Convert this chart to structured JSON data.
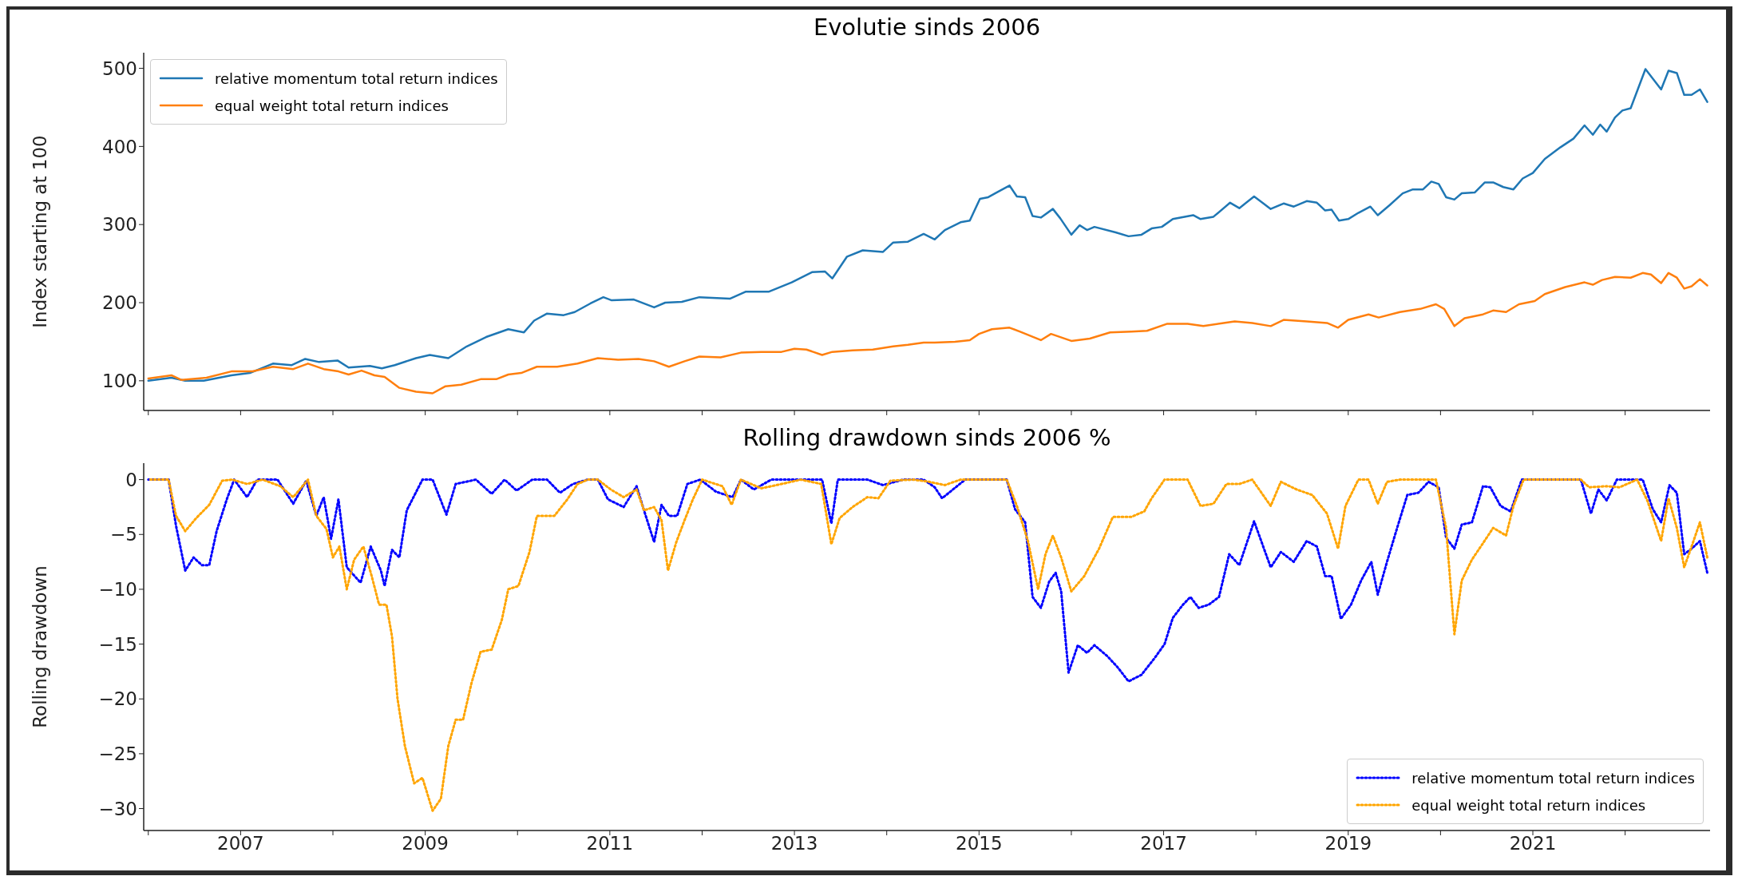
{
  "chart_data": [
    {
      "type": "line",
      "title": "Evolutie sinds 2006",
      "ylabel": "Index starting at 100",
      "line_style": "solid",
      "legend": "top left",
      "tick_labels": "y",
      "xlim": [
        2005.95,
        2022.92
      ],
      "xticks": [
        {
          "value": 2006,
          "label": null
        },
        2007,
        {
          "value": 2008,
          "label": null
        },
        2009,
        {
          "value": 2010,
          "label": null
        },
        2011,
        {
          "value": 2012,
          "label": null
        },
        2013,
        {
          "value": 2014,
          "label": null
        },
        2015,
        {
          "value": 2016,
          "label": null
        },
        2017,
        {
          "value": 2018,
          "label": null
        },
        2019,
        {
          "value": 2020,
          "label": null
        },
        2021,
        {
          "value": 2022,
          "label": null
        }
      ],
      "ylim": [
        62,
        520
      ],
      "yticks": [
        100,
        200,
        300,
        400,
        500
      ],
      "series": [
        {
          "name": "relative momentum total return indices",
          "color": "#1f77b4",
          "x": [
            2006.0,
            2006.25,
            2006.4,
            2006.6,
            2006.9,
            2007.1,
            2007.35,
            2007.55,
            2007.7,
            2007.85,
            2008.05,
            2008.17,
            2008.4,
            2008.53,
            2008.67,
            2008.9,
            2009.05,
            2009.25,
            2009.45,
            2009.66,
            2009.9,
            2010.07,
            2010.18,
            2010.32,
            2010.5,
            2010.62,
            2010.79,
            2010.93,
            2011.02,
            2011.26,
            2011.48,
            2011.6,
            2011.78,
            2011.97,
            2012.3,
            2012.47,
            2012.72,
            2012.97,
            2013.19,
            2013.33,
            2013.41,
            2013.57,
            2013.74,
            2013.96,
            2014.07,
            2014.23,
            2014.4,
            2014.52,
            2014.63,
            2014.8,
            2014.9,
            2015.01,
            2015.1,
            2015.19,
            2015.33,
            2015.41,
            2015.5,
            2015.58,
            2015.67,
            2015.8,
            2015.88,
            2016.0,
            2016.09,
            2016.17,
            2016.25,
            2016.48,
            2016.62,
            2016.76,
            2016.87,
            2016.98,
            2017.1,
            2017.32,
            2017.4,
            2017.54,
            2017.72,
            2017.82,
            2017.98,
            2018.16,
            2018.3,
            2018.41,
            2018.55,
            2018.66,
            2018.75,
            2018.82,
            2018.9,
            2019.0,
            2019.11,
            2019.24,
            2019.32,
            2019.45,
            2019.59,
            2019.7,
            2019.81,
            2019.9,
            2019.98,
            2020.06,
            2020.15,
            2020.23,
            2020.37,
            2020.48,
            2020.57,
            2020.68,
            2020.79,
            2020.89,
            2021.0,
            2021.13,
            2021.3,
            2021.44,
            2021.56,
            2021.65,
            2021.73,
            2021.8,
            2021.89,
            2021.97,
            2022.06,
            2022.22,
            2022.39,
            2022.47,
            2022.56,
            2022.64,
            2022.72,
            2022.81,
            2022.89
          ],
          "values": [
            100,
            104,
            100,
            100,
            107,
            110,
            122,
            120,
            128,
            124,
            126,
            117,
            119,
            116,
            120,
            129,
            133,
            129,
            144,
            156,
            166,
            162,
            177,
            186,
            184,
            188,
            199,
            207,
            203,
            204,
            194,
            200,
            201,
            207,
            205,
            214,
            214,
            226,
            239,
            240,
            231,
            259,
            267,
            265,
            277,
            278,
            288,
            281,
            293,
            303,
            305,
            333,
            335,
            341,
            350,
            336,
            335,
            311,
            309,
            320,
            308,
            287,
            299,
            293,
            297,
            290,
            285,
            287,
            295,
            297,
            307,
            312,
            307,
            310,
            328,
            321,
            336,
            320,
            327,
            323,
            330,
            328,
            318,
            319,
            305,
            307,
            315,
            323,
            312,
            325,
            340,
            345,
            345,
            355,
            352,
            335,
            332,
            340,
            341,
            354,
            354,
            348,
            345,
            359,
            366,
            384,
            399,
            410,
            427,
            415,
            428,
            419,
            437,
            446,
            449,
            499,
            473,
            497,
            494,
            466,
            466,
            473,
            457
          ]
        },
        {
          "name": "equal weight total return indices",
          "color": "#ff7f0e",
          "x": [
            2006.0,
            2006.25,
            2006.36,
            2006.63,
            2006.9,
            2007.13,
            2007.35,
            2007.57,
            2007.73,
            2007.9,
            2008.06,
            2008.17,
            2008.31,
            2008.45,
            2008.56,
            2008.72,
            2008.9,
            2009.08,
            2009.22,
            2009.39,
            2009.6,
            2009.77,
            2009.9,
            2010.04,
            2010.21,
            2010.43,
            2010.65,
            2010.87,
            2011.09,
            2011.31,
            2011.48,
            2011.64,
            2011.81,
            2011.97,
            2012.2,
            2012.42,
            2012.64,
            2012.86,
            2013.0,
            2013.13,
            2013.3,
            2013.41,
            2013.63,
            2013.85,
            2014.07,
            2014.23,
            2014.4,
            2014.52,
            2014.74,
            2014.9,
            2015.0,
            2015.14,
            2015.33,
            2015.44,
            2015.67,
            2015.78,
            2016.0,
            2016.2,
            2016.42,
            2016.65,
            2016.82,
            2017.04,
            2017.26,
            2017.43,
            2017.65,
            2017.77,
            2017.96,
            2018.16,
            2018.3,
            2018.55,
            2018.77,
            2018.89,
            2019.0,
            2019.22,
            2019.33,
            2019.56,
            2019.78,
            2019.95,
            2020.04,
            2020.15,
            2020.26,
            2020.46,
            2020.57,
            2020.71,
            2020.85,
            2021.02,
            2021.13,
            2021.35,
            2021.56,
            2021.65,
            2021.75,
            2021.89,
            2022.06,
            2022.19,
            2022.28,
            2022.39,
            2022.47,
            2022.56,
            2022.64,
            2022.72,
            2022.81,
            2022.89
          ],
          "values": [
            103,
            107,
            101,
            104,
            112,
            112,
            118,
            115,
            122,
            115,
            112,
            108,
            113,
            107,
            105,
            91,
            86,
            84,
            93,
            95,
            102,
            102,
            108,
            110,
            118,
            118,
            122,
            129,
            127,
            128,
            125,
            118,
            125,
            131,
            130,
            136,
            137,
            137,
            141,
            140,
            133,
            137,
            139,
            140,
            144,
            146,
            149,
            149,
            150,
            152,
            160,
            166,
            168,
            163,
            152,
            160,
            151,
            154,
            162,
            163,
            164,
            173,
            173,
            170,
            174,
            176,
            174,
            170,
            178,
            176,
            174,
            168,
            178,
            185,
            181,
            188,
            192,
            198,
            192,
            170,
            180,
            185,
            190,
            188,
            198,
            202,
            211,
            220,
            226,
            223,
            229,
            233,
            232,
            238,
            236,
            225,
            238,
            232,
            218,
            221,
            230,
            222
          ]
        }
      ]
    },
    {
      "type": "line",
      "title": "Rolling drawdown sinds 2006 %",
      "ylabel": "Rolling drawdown",
      "line_style": "dotted",
      "legend": "bottom right",
      "xlim": [
        2005.95,
        2022.92
      ],
      "xticks": [
        {
          "value": 2006,
          "label": null
        },
        2007,
        {
          "value": 2008,
          "label": null
        },
        2009,
        {
          "value": 2010,
          "label": null
        },
        2011,
        {
          "value": 2012,
          "label": null
        },
        2013,
        {
          "value": 2014,
          "label": null
        },
        2015,
        {
          "value": 2016,
          "label": null
        },
        2017,
        {
          "value": 2018,
          "label": null
        },
        2019,
        {
          "value": 2020,
          "label": null
        },
        2021,
        {
          "value": 2022,
          "label": null
        }
      ],
      "ylim": [
        -32,
        1.5
      ],
      "yticks": [
        {
          "value": -30,
          "label": "−30"
        },
        {
          "value": -25,
          "label": "−25"
        },
        {
          "value": -20,
          "label": "−20"
        },
        {
          "value": -15,
          "label": "−15"
        },
        {
          "value": -10,
          "label": "−10"
        },
        {
          "value": -5,
          "label": "−5"
        },
        0
      ],
      "series": [
        {
          "name": "relative momentum total return indices",
          "color": "#0000ff",
          "x": [
            2006.0,
            2006.22,
            2006.3,
            2006.4,
            2006.49,
            2006.58,
            2006.66,
            2006.74,
            2006.85,
            2006.93,
            2007.07,
            2007.18,
            2007.4,
            2007.57,
            2007.71,
            2007.82,
            2007.9,
            2007.98,
            2008.06,
            2008.15,
            2008.3,
            2008.41,
            2008.52,
            2008.56,
            2008.64,
            2008.72,
            2008.8,
            2008.97,
            2009.08,
            2009.23,
            2009.33,
            2009.55,
            2009.72,
            2009.86,
            2009.99,
            2010.16,
            2010.32,
            2010.46,
            2010.6,
            2010.76,
            2010.87,
            2010.98,
            2011.15,
            2011.29,
            2011.37,
            2011.48,
            2011.56,
            2011.64,
            2011.73,
            2011.84,
            2011.98,
            2012.15,
            2012.33,
            2012.42,
            2012.56,
            2012.75,
            2013.19,
            2013.3,
            2013.4,
            2013.47,
            2013.79,
            2013.96,
            2014.18,
            2014.4,
            2014.52,
            2014.6,
            2014.85,
            2015.3,
            2015.39,
            2015.5,
            2015.58,
            2015.67,
            2015.76,
            2015.83,
            2015.89,
            2015.97,
            2016.07,
            2016.17,
            2016.25,
            2016.39,
            2016.5,
            2016.62,
            2016.76,
            2016.9,
            2017.01,
            2017.1,
            2017.21,
            2017.29,
            2017.38,
            2017.49,
            2017.6,
            2017.71,
            2017.82,
            2017.98,
            2018.16,
            2018.27,
            2018.41,
            2018.55,
            2018.66,
            2018.75,
            2018.82,
            2018.92,
            2019.03,
            2019.14,
            2019.25,
            2019.32,
            2019.42,
            2019.53,
            2019.64,
            2019.76,
            2019.87,
            2019.98,
            2020.06,
            2020.15,
            2020.23,
            2020.34,
            2020.46,
            2020.54,
            2020.65,
            2020.76,
            2020.88,
            2021.0,
            2021.52,
            2021.63,
            2021.71,
            2021.8,
            2021.91,
            2022.19,
            2022.3,
            2022.39,
            2022.48,
            2022.56,
            2022.64,
            2022.72,
            2022.81,
            2022.89
          ],
          "values": [
            0,
            0,
            -4.2,
            -8.3,
            -7.1,
            -7.8,
            -7.8,
            -4.7,
            -1.8,
            0,
            -1.6,
            0,
            0,
            -2.2,
            -0.1,
            -3.3,
            -1.6,
            -5.4,
            -1.8,
            -8.0,
            -9.4,
            -6.1,
            -8.3,
            -9.7,
            -6.4,
            -7.1,
            -2.8,
            0,
            0,
            -3.2,
            -0.4,
            0,
            -1.3,
            0,
            -1.0,
            0,
            0,
            -1.2,
            -0.4,
            0,
            0,
            -1.8,
            -2.5,
            -0.6,
            -2.8,
            -5.7,
            -2.3,
            -3.3,
            -3.3,
            -0.4,
            0,
            -1.1,
            -1.6,
            0,
            -0.9,
            0,
            0,
            0,
            -4.0,
            0,
            0,
            -0.5,
            0,
            0,
            -0.7,
            -1.7,
            0,
            0,
            -2.7,
            -3.9,
            -10.7,
            -11.7,
            -9.3,
            -8.5,
            -10.2,
            -17.6,
            -15.1,
            -15.8,
            -15.1,
            -16.1,
            -17.1,
            -18.4,
            -17.8,
            -16.3,
            -15.0,
            -12.6,
            -11.4,
            -10.7,
            -11.7,
            -11.4,
            -10.7,
            -6.8,
            -7.8,
            -3.8,
            -8.0,
            -6.6,
            -7.5,
            -5.6,
            -6.1,
            -8.8,
            -8.8,
            -12.7,
            -11.4,
            -9.2,
            -7.5,
            -10.5,
            -7.5,
            -4.4,
            -1.4,
            -1.2,
            -0.2,
            -0.7,
            -5.3,
            -6.3,
            -4.1,
            -3.9,
            -0.6,
            -0.7,
            -2.4,
            -2.9,
            0,
            0,
            0,
            -3.1,
            -0.9,
            -1.9,
            0,
            0,
            -2.7,
            -3.9,
            -0.5,
            -1.2,
            -6.8,
            -6.3,
            -5.6,
            -8.5
          ]
        },
        {
          "name": "equal weight total return indices",
          "color": "#ffa500",
          "x": [
            2006.0,
            2006.22,
            2006.3,
            2006.4,
            2006.52,
            2006.66,
            2006.8,
            2006.91,
            2007.07,
            2007.24,
            2007.43,
            2007.57,
            2007.73,
            2007.82,
            2007.93,
            2008.0,
            2008.07,
            2008.15,
            2008.23,
            2008.33,
            2008.42,
            2008.5,
            2008.58,
            2008.64,
            2008.7,
            2008.78,
            2008.88,
            2008.97,
            2009.08,
            2009.17,
            2009.25,
            2009.33,
            2009.41,
            2009.5,
            2009.6,
            2009.72,
            2009.83,
            2009.9,
            2010.01,
            2010.13,
            2010.21,
            2010.4,
            2010.54,
            2010.65,
            2010.76,
            2010.87,
            2011.01,
            2011.15,
            2011.29,
            2011.37,
            2011.48,
            2011.56,
            2011.63,
            2011.72,
            2011.81,
            2011.9,
            2012.0,
            2012.22,
            2012.32,
            2012.42,
            2012.64,
            2012.86,
            2013.07,
            2013.29,
            2013.4,
            2013.49,
            2013.63,
            2013.79,
            2013.91,
            2014.04,
            2014.29,
            2014.46,
            2014.63,
            2014.8,
            2015.3,
            2015.41,
            2015.53,
            2015.64,
            2015.72,
            2015.8,
            2015.89,
            2016.0,
            2016.14,
            2016.3,
            2016.45,
            2016.65,
            2016.79,
            2016.87,
            2017.01,
            2017.26,
            2017.4,
            2017.54,
            2017.68,
            2017.82,
            2017.96,
            2018.16,
            2018.27,
            2018.44,
            2018.61,
            2018.77,
            2018.89,
            2018.97,
            2019.11,
            2019.22,
            2019.32,
            2019.42,
            2019.56,
            2019.95,
            2020.06,
            2020.15,
            2020.23,
            2020.34,
            2020.46,
            2020.57,
            2020.71,
            2020.79,
            2020.9,
            2021.52,
            2021.61,
            2021.8,
            2021.94,
            2022.13,
            2022.24,
            2022.39,
            2022.47,
            2022.56,
            2022.64,
            2022.72,
            2022.81,
            2022.89
          ],
          "values": [
            0,
            0,
            -3.3,
            -4.7,
            -3.5,
            -2.3,
            -0.1,
            0,
            -0.4,
            0,
            -0.6,
            -1.6,
            0,
            -3.3,
            -4.5,
            -7.1,
            -6.1,
            -10.0,
            -7.3,
            -6.1,
            -8.8,
            -11.4,
            -11.4,
            -14.3,
            -20.0,
            -24.3,
            -27.7,
            -27.2,
            -30.2,
            -29.1,
            -24.3,
            -21.9,
            -21.9,
            -18.6,
            -15.7,
            -15.5,
            -12.8,
            -10.0,
            -9.7,
            -6.6,
            -3.3,
            -3.3,
            -1.8,
            -0.4,
            0,
            0,
            -0.9,
            -1.6,
            -0.9,
            -2.8,
            -2.5,
            -3.7,
            -8.3,
            -5.7,
            -3.7,
            -1.8,
            0,
            -0.6,
            -2.3,
            0,
            -0.8,
            -0.4,
            0,
            -0.4,
            -5.9,
            -3.5,
            -2.5,
            -1.6,
            -1.7,
            -0.1,
            0,
            -0.2,
            -0.5,
            0,
            0,
            -2.4,
            -5.6,
            -10.0,
            -6.8,
            -5.1,
            -7.1,
            -10.2,
            -8.8,
            -6.3,
            -3.4,
            -3.4,
            -2.9,
            -1.7,
            0,
            0,
            -2.4,
            -2.2,
            -0.4,
            -0.4,
            0,
            -2.4,
            -0.2,
            -0.9,
            -1.4,
            -3.1,
            -6.3,
            -2.4,
            0,
            0,
            -2.2,
            -0.2,
            0,
            0,
            -4.4,
            -14.1,
            -9.2,
            -7.3,
            -5.8,
            -4.4,
            -5.1,
            -2.4,
            0,
            0,
            -0.7,
            -0.6,
            -0.7,
            0,
            -1.9,
            -5.6,
            -1.7,
            -4.4,
            -8.0,
            -6.1,
            -3.9,
            -7.1
          ]
        }
      ]
    }
  ]
}
